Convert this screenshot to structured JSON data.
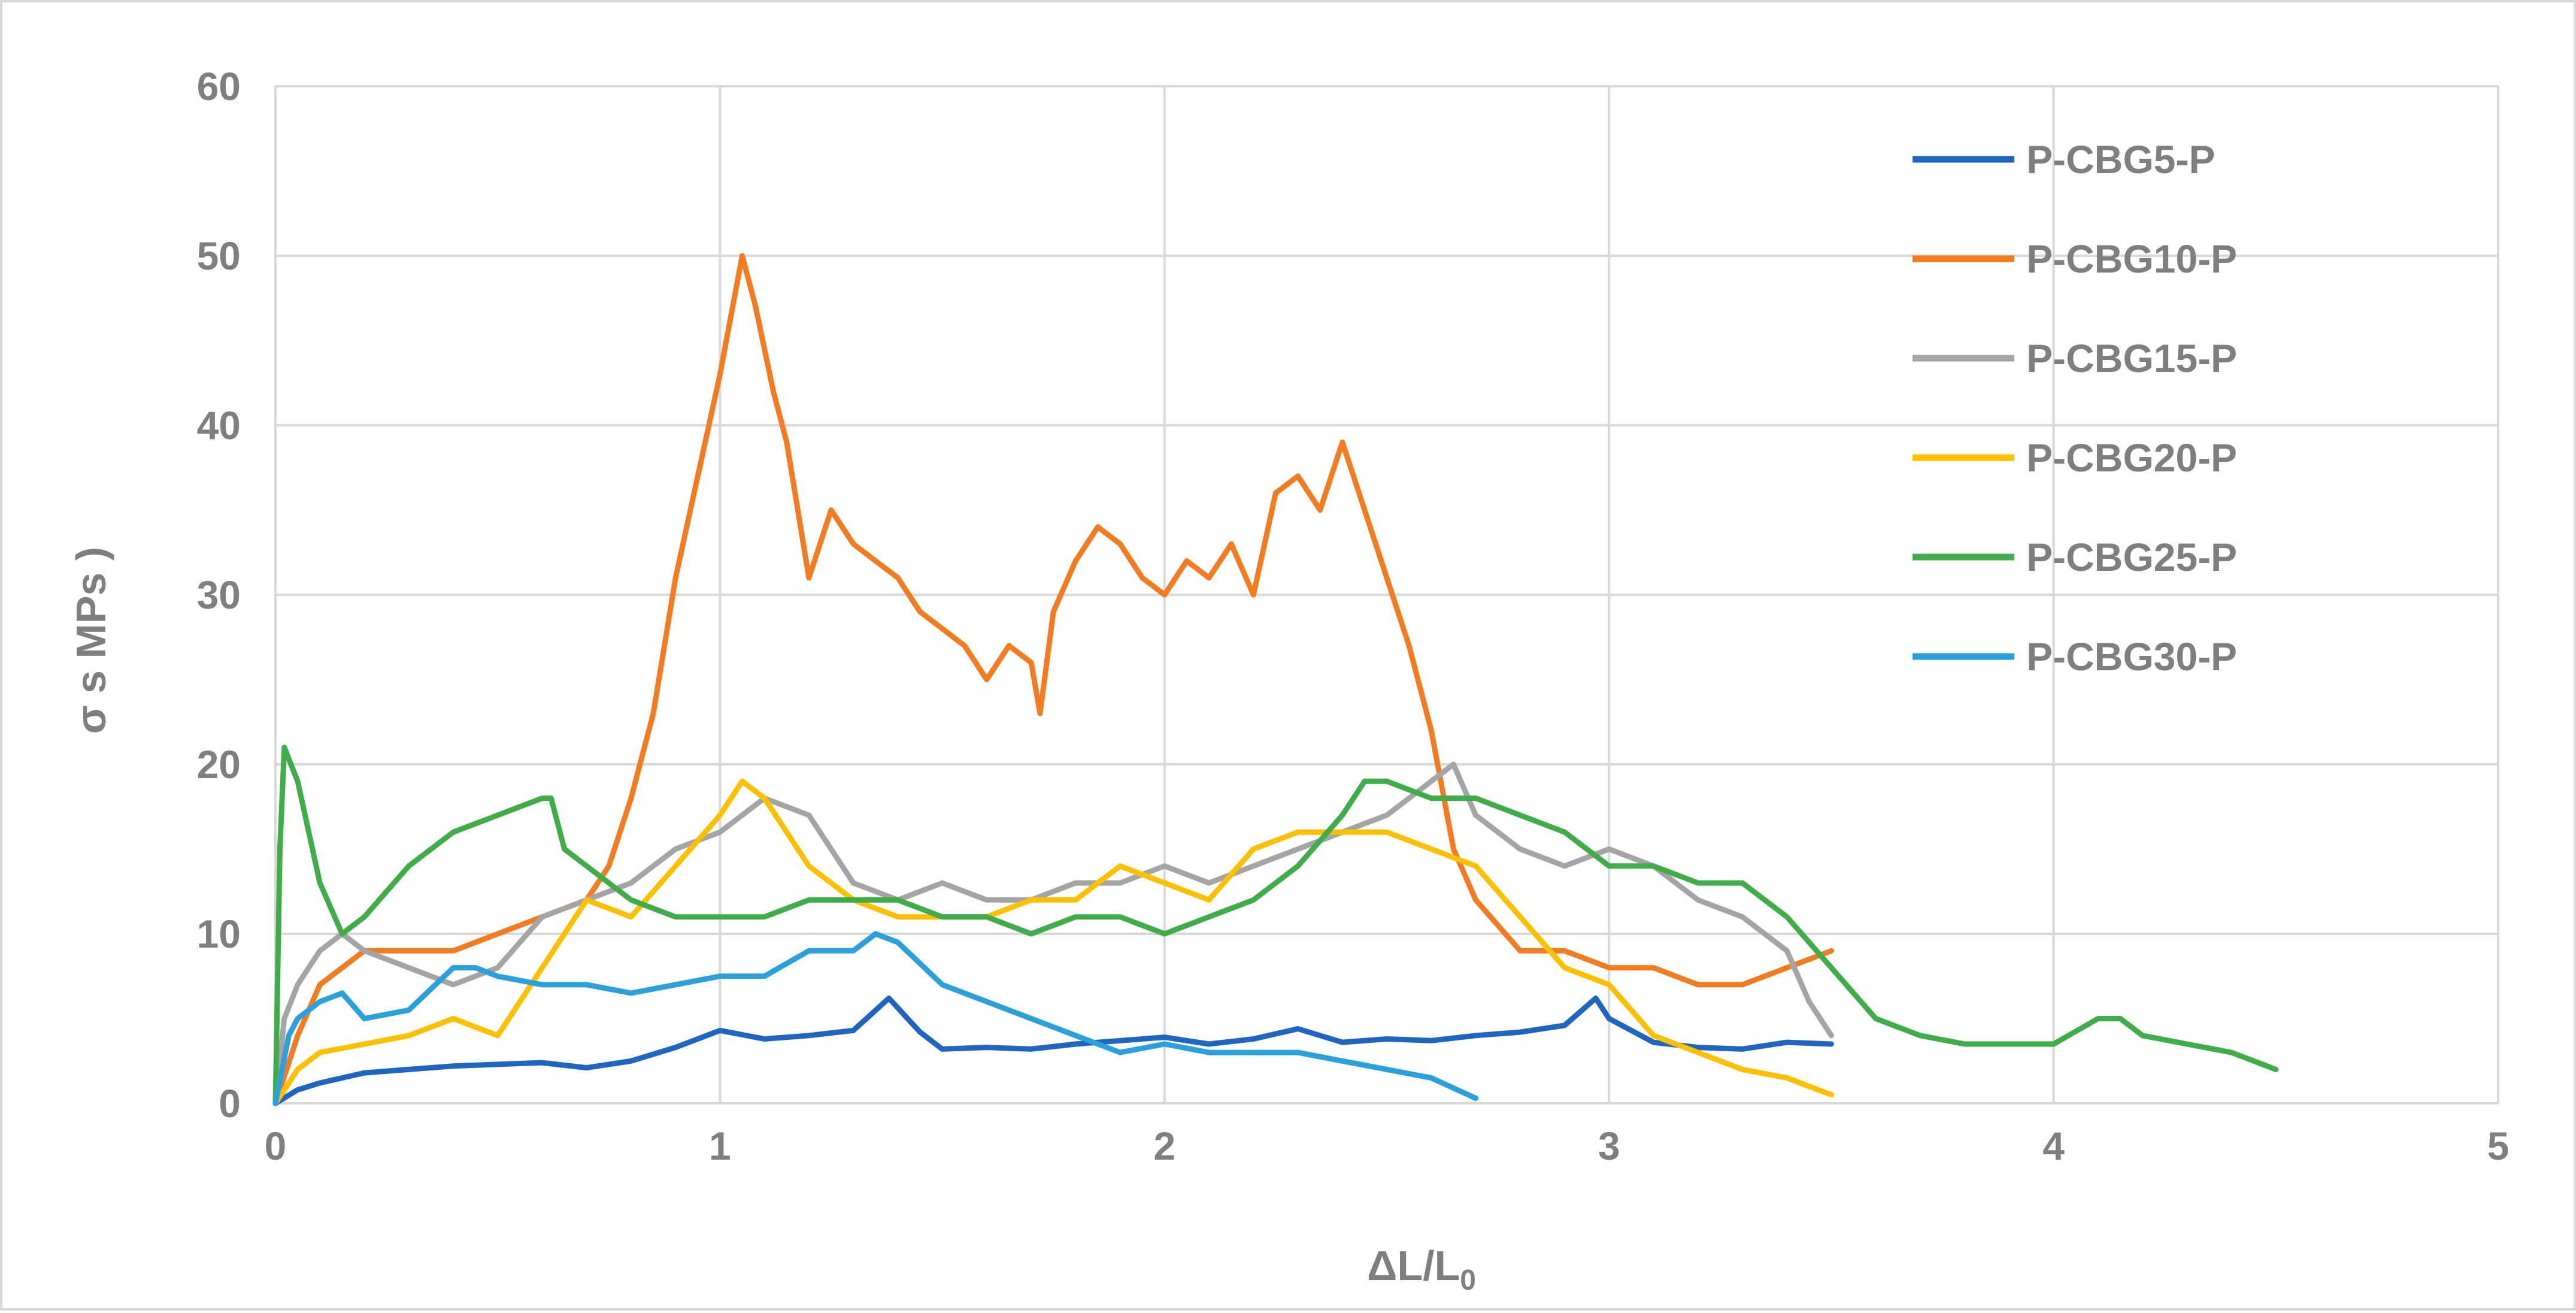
{
  "chart_data": {
    "type": "line",
    "title": "",
    "xlabel": "ΔL/L",
    "xlabel_sub": "0",
    "ylabel": "σ s MPs )",
    "xlim": [
      0,
      5
    ],
    "ylim": [
      0,
      60
    ],
    "x_ticks": [
      "0",
      "1",
      "2",
      "3",
      "4",
      "5"
    ],
    "y_ticks": [
      "0",
      "10",
      "20",
      "30",
      "40",
      "50",
      "60"
    ],
    "grid": true,
    "legend_position": "top-right",
    "series": [
      {
        "name": "P-CBG5-P",
        "color": "#1f66c2",
        "x": [
          0,
          0.05,
          0.1,
          0.2,
          0.3,
          0.4,
          0.5,
          0.6,
          0.7,
          0.8,
          0.9,
          1.0,
          1.1,
          1.2,
          1.3,
          1.38,
          1.45,
          1.5,
          1.6,
          1.7,
          1.8,
          1.9,
          2.0,
          2.1,
          2.2,
          2.3,
          2.4,
          2.5,
          2.6,
          2.7,
          2.8,
          2.9,
          2.97,
          3.0,
          3.1,
          3.2,
          3.3,
          3.4,
          3.5
        ],
        "y": [
          0,
          0.8,
          1.2,
          1.8,
          2.0,
          2.2,
          2.3,
          2.4,
          2.1,
          2.5,
          3.3,
          4.3,
          3.8,
          4.0,
          4.3,
          6.2,
          4.2,
          3.2,
          3.3,
          3.2,
          3.5,
          3.7,
          3.9,
          3.5,
          3.8,
          4.4,
          3.6,
          3.8,
          3.7,
          4.0,
          4.2,
          4.6,
          6.2,
          5.0,
          3.6,
          3.3,
          3.2,
          3.6,
          3.5
        ]
      },
      {
        "name": "P-CBG10-P",
        "color": "#f47c20",
        "x": [
          0,
          0.05,
          0.1,
          0.2,
          0.3,
          0.4,
          0.5,
          0.6,
          0.7,
          0.75,
          0.8,
          0.85,
          0.9,
          0.95,
          1.0,
          1.05,
          1.08,
          1.12,
          1.15,
          1.2,
          1.25,
          1.3,
          1.35,
          1.4,
          1.45,
          1.5,
          1.55,
          1.6,
          1.65,
          1.7,
          1.72,
          1.75,
          1.8,
          1.85,
          1.9,
          1.95,
          2.0,
          2.05,
          2.1,
          2.15,
          2.2,
          2.25,
          2.3,
          2.35,
          2.4,
          2.45,
          2.5,
          2.55,
          2.6,
          2.65,
          2.7,
          2.8,
          2.9,
          3.0,
          3.1,
          3.2,
          3.3,
          3.4,
          3.5
        ],
        "y": [
          0,
          4,
          7,
          9,
          9,
          9,
          10,
          11,
          12,
          14,
          18,
          23,
          31,
          37,
          43,
          50,
          47,
          42,
          39,
          31,
          35,
          33,
          32,
          31,
          29,
          28,
          27,
          25,
          27,
          26,
          23,
          29,
          32,
          34,
          33,
          31,
          30,
          32,
          31,
          33,
          30,
          36,
          37,
          35,
          39,
          35,
          31,
          27,
          22,
          15,
          12,
          9,
          9,
          8,
          8,
          7,
          7,
          8,
          9
        ]
      },
      {
        "name": "P-CBG15-P",
        "color": "#a5a5a5",
        "x": [
          0,
          0.02,
          0.05,
          0.1,
          0.15,
          0.2,
          0.3,
          0.4,
          0.5,
          0.6,
          0.7,
          0.8,
          0.9,
          1.0,
          1.1,
          1.2,
          1.3,
          1.4,
          1.5,
          1.6,
          1.7,
          1.8,
          1.9,
          2.0,
          2.1,
          2.2,
          2.3,
          2.4,
          2.5,
          2.6,
          2.65,
          2.7,
          2.8,
          2.9,
          3.0,
          3.1,
          3.2,
          3.3,
          3.4,
          3.45,
          3.5
        ],
        "y": [
          0,
          5,
          7,
          9,
          10,
          9,
          8,
          7,
          8,
          11,
          12,
          13,
          15,
          16,
          18,
          17,
          13,
          12,
          13,
          12,
          12,
          13,
          13,
          14,
          13,
          14,
          15,
          16,
          17,
          19,
          20,
          17,
          15,
          14,
          15,
          14,
          12,
          11,
          9,
          6,
          4
        ]
      },
      {
        "name": "P-CBG20-P",
        "color": "#ffc000",
        "x": [
          0,
          0.05,
          0.1,
          0.2,
          0.3,
          0.4,
          0.5,
          0.6,
          0.7,
          0.8,
          0.9,
          1.0,
          1.05,
          1.1,
          1.2,
          1.3,
          1.4,
          1.5,
          1.6,
          1.7,
          1.8,
          1.9,
          2.0,
          2.1,
          2.2,
          2.3,
          2.4,
          2.5,
          2.6,
          2.7,
          2.8,
          2.9,
          3.0,
          3.1,
          3.2,
          3.3,
          3.4,
          3.5
        ],
        "y": [
          0,
          2,
          3,
          3.5,
          4,
          5,
          4,
          8,
          12,
          11,
          14,
          17,
          19,
          18,
          14,
          12,
          11,
          11,
          11,
          12,
          12,
          14,
          13,
          12,
          15,
          16,
          16,
          16,
          15,
          14,
          11,
          8,
          7,
          4,
          3,
          2,
          1.5,
          0.5
        ]
      },
      {
        "name": "P-CBG25-P",
        "color": "#3fae49",
        "x": [
          0,
          0.01,
          0.02,
          0.05,
          0.1,
          0.15,
          0.2,
          0.3,
          0.4,
          0.5,
          0.6,
          0.62,
          0.65,
          0.7,
          0.8,
          0.9,
          1.0,
          1.1,
          1.2,
          1.3,
          1.4,
          1.5,
          1.6,
          1.7,
          1.8,
          1.9,
          2.0,
          2.1,
          2.2,
          2.3,
          2.4,
          2.45,
          2.5,
          2.6,
          2.7,
          2.8,
          2.9,
          3.0,
          3.1,
          3.2,
          3.3,
          3.4,
          3.5,
          3.6,
          3.7,
          3.8,
          3.9,
          4.0,
          4.1,
          4.15,
          4.2,
          4.3,
          4.4,
          4.5
        ],
        "y": [
          0,
          15,
          21,
          19,
          13,
          10,
          11,
          14,
          16,
          17,
          18,
          18,
          15,
          14,
          12,
          11,
          11,
          11,
          12,
          12,
          12,
          11,
          11,
          10,
          11,
          11,
          10,
          11,
          12,
          14,
          17,
          19,
          19,
          18,
          18,
          17,
          16,
          14,
          14,
          13,
          13,
          11,
          8,
          5,
          4,
          3.5,
          3.5,
          3.5,
          5,
          5,
          4,
          3.5,
          3,
          2
        ]
      },
      {
        "name": "P-CBG30-P",
        "color": "#2aa0dc",
        "x": [
          0,
          0.03,
          0.05,
          0.1,
          0.15,
          0.2,
          0.3,
          0.4,
          0.45,
          0.5,
          0.6,
          0.7,
          0.8,
          0.9,
          1.0,
          1.1,
          1.2,
          1.3,
          1.35,
          1.4,
          1.5,
          1.6,
          1.7,
          1.8,
          1.9,
          2.0,
          2.1,
          2.2,
          2.3,
          2.4,
          2.5,
          2.6,
          2.7
        ],
        "y": [
          0,
          4,
          5,
          6,
          6.5,
          5,
          5.5,
          8,
          8,
          7.5,
          7,
          7,
          6.5,
          7,
          7.5,
          7.5,
          9,
          9,
          10,
          9.5,
          7,
          6,
          5,
          4,
          3,
          3.5,
          3,
          3,
          3,
          2.5,
          2,
          1.5,
          0.3
        ]
      }
    ]
  }
}
